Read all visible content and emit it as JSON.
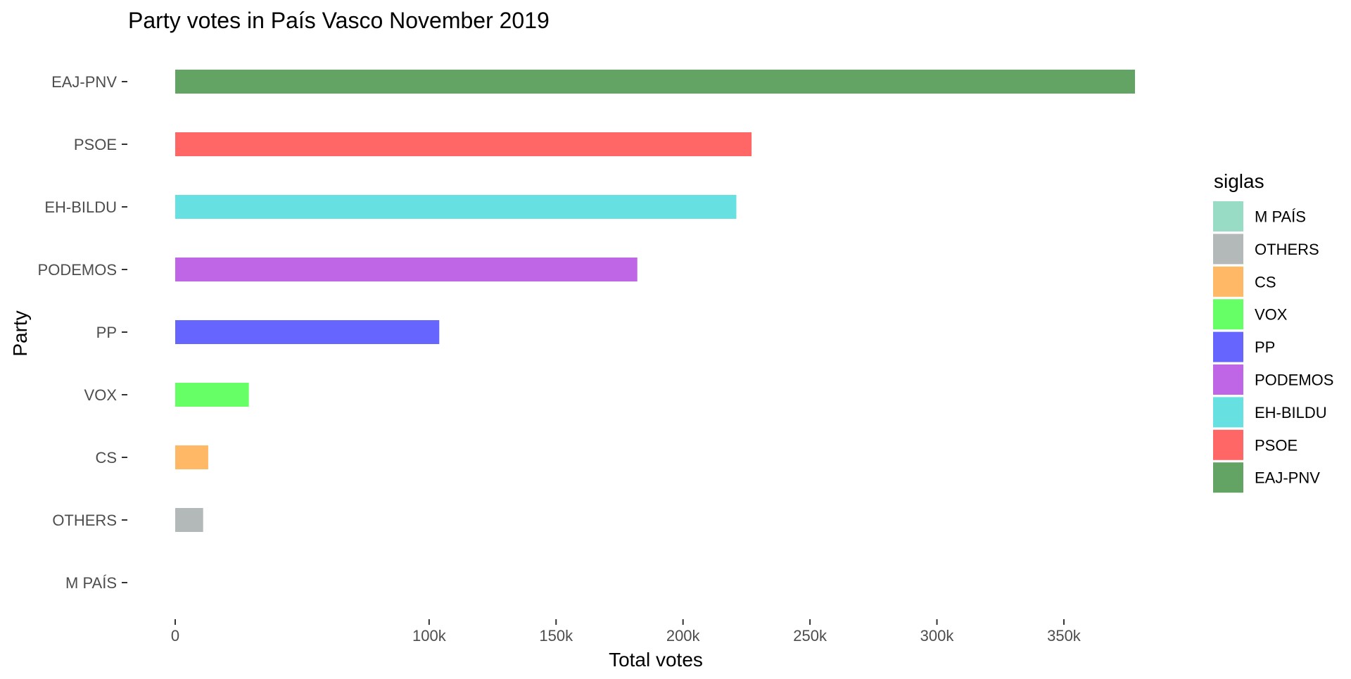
{
  "chart_data": {
    "type": "bar",
    "orientation": "horizontal",
    "title": "Party votes in País Vasco November 2019",
    "xlabel": "Total votes",
    "ylabel": "Party",
    "categories": [
      "EAJ-PNV",
      "PSOE",
      "EH-BILDU",
      "PODEMOS",
      "PP",
      "VOX",
      "CS",
      "OTHERS",
      "M PAÍS"
    ],
    "values": [
      378000,
      227000,
      221000,
      182000,
      104000,
      29000,
      13000,
      11000,
      0
    ],
    "colors": [
      "#63a363",
      "#ff6666",
      "#66e0e0",
      "#bf66e6",
      "#6666ff",
      "#66ff66",
      "#ffb866",
      "#b3b8b8",
      "#99dcc5"
    ],
    "xticks": [
      0,
      100000,
      150000,
      200000,
      250000,
      300000,
      350000
    ],
    "xtick_labels": [
      "0",
      "100k",
      "150k",
      "200k",
      "250k",
      "300k",
      "350k"
    ],
    "xlim": [
      0,
      378000
    ],
    "grid": false,
    "legend": {
      "title": "siglas",
      "position": "right",
      "items": [
        {
          "label": "M PAÍS",
          "color": "#99dcc5"
        },
        {
          "label": "OTHERS",
          "color": "#b3b8b8"
        },
        {
          "label": "CS",
          "color": "#ffb866"
        },
        {
          "label": "VOX",
          "color": "#66ff66"
        },
        {
          "label": "PP",
          "color": "#6666ff"
        },
        {
          "label": "PODEMOS",
          "color": "#bf66e6"
        },
        {
          "label": "EH-BILDU",
          "color": "#66e0e0"
        },
        {
          "label": "PSOE",
          "color": "#ff6666"
        },
        {
          "label": "EAJ-PNV",
          "color": "#63a363"
        }
      ]
    }
  }
}
